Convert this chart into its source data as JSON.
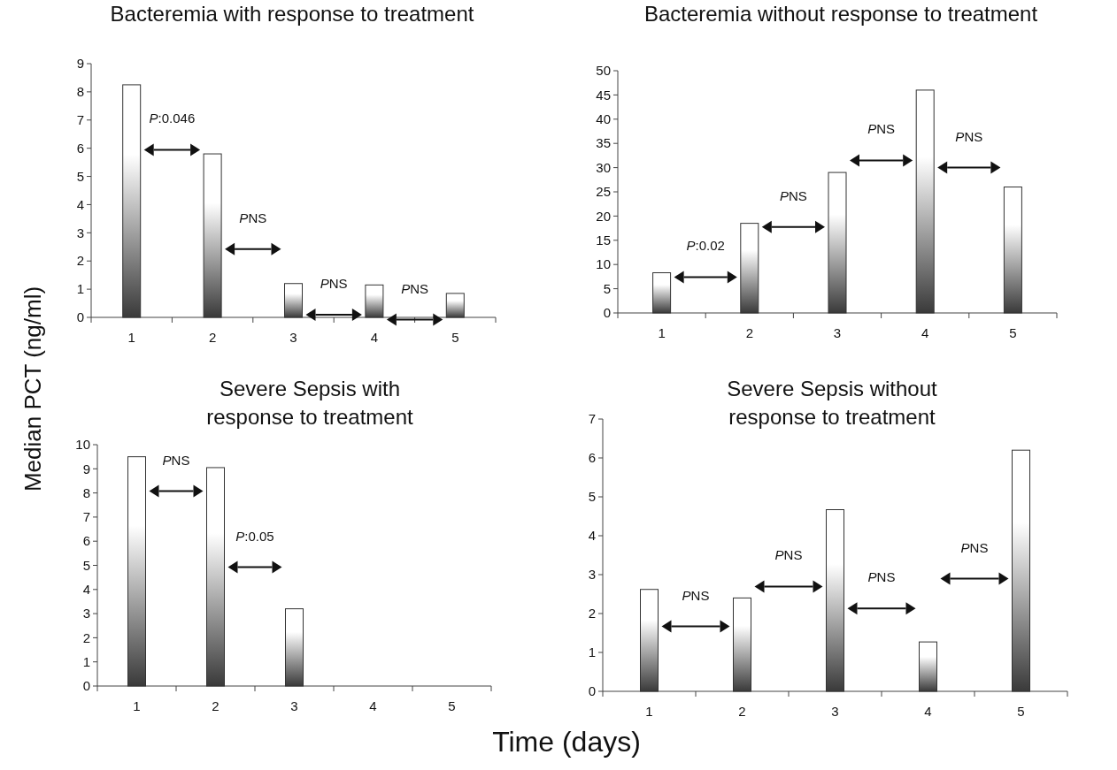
{
  "chart_data": [
    {
      "type": "bar",
      "title": "Bacteremia with response to treatment",
      "ylabel": "Median PCT (ng/ml)",
      "categories": [
        "1",
        "2",
        "3",
        "4",
        "5"
      ],
      "values": [
        8.25,
        5.8,
        1.2,
        1.15,
        0.85
      ],
      "color": "#3a3a3a",
      "ylim": [
        0,
        9
      ],
      "yticks": [
        0,
        1,
        2,
        3,
        4,
        5,
        6,
        7,
        8,
        9
      ],
      "annotations": [
        "P:0.046",
        "PNS",
        "PNS",
        "PNS"
      ]
    },
    {
      "type": "bar",
      "title": "Bacteremia without response to treatment",
      "categories": [
        "1",
        "2",
        "3",
        "4",
        "5"
      ],
      "values": [
        8.3,
        18.5,
        29,
        46,
        26
      ],
      "color": "#3a3a3a",
      "ylim": [
        0,
        50
      ],
      "yticks": [
        0,
        5,
        10,
        15,
        20,
        25,
        30,
        35,
        40,
        45,
        50
      ],
      "annotations": [
        "P:0.02",
        "PNS",
        "PNS",
        "PNS"
      ]
    },
    {
      "type": "bar",
      "title": "Severe Sepsis with\nresponse to treatment",
      "xlabel": "Time (days)",
      "categories": [
        "1",
        "2",
        "3",
        "4",
        "5"
      ],
      "values": [
        9.5,
        9.05,
        3.2,
        null,
        null
      ],
      "color": "#3a3a3a",
      "ylim": [
        0,
        10
      ],
      "yticks": [
        0,
        1,
        2,
        3,
        4,
        5,
        6,
        7,
        8,
        9,
        10
      ],
      "annotations": [
        "PNS",
        "P:0.05"
      ]
    },
    {
      "type": "bar",
      "title": "Severe Sepsis without\nresponse to treatment",
      "categories": [
        "1",
        "2",
        "3",
        "4",
        "5"
      ],
      "values": [
        2.62,
        2.4,
        4.67,
        1.27,
        6.2
      ],
      "color": "#3a3a3a",
      "ylim": [
        0,
        7
      ],
      "yticks": [
        0,
        1,
        2,
        3,
        4,
        5,
        6,
        7
      ],
      "annotations": [
        "PNS",
        "PNS",
        "PNS",
        "PNS"
      ]
    }
  ]
}
